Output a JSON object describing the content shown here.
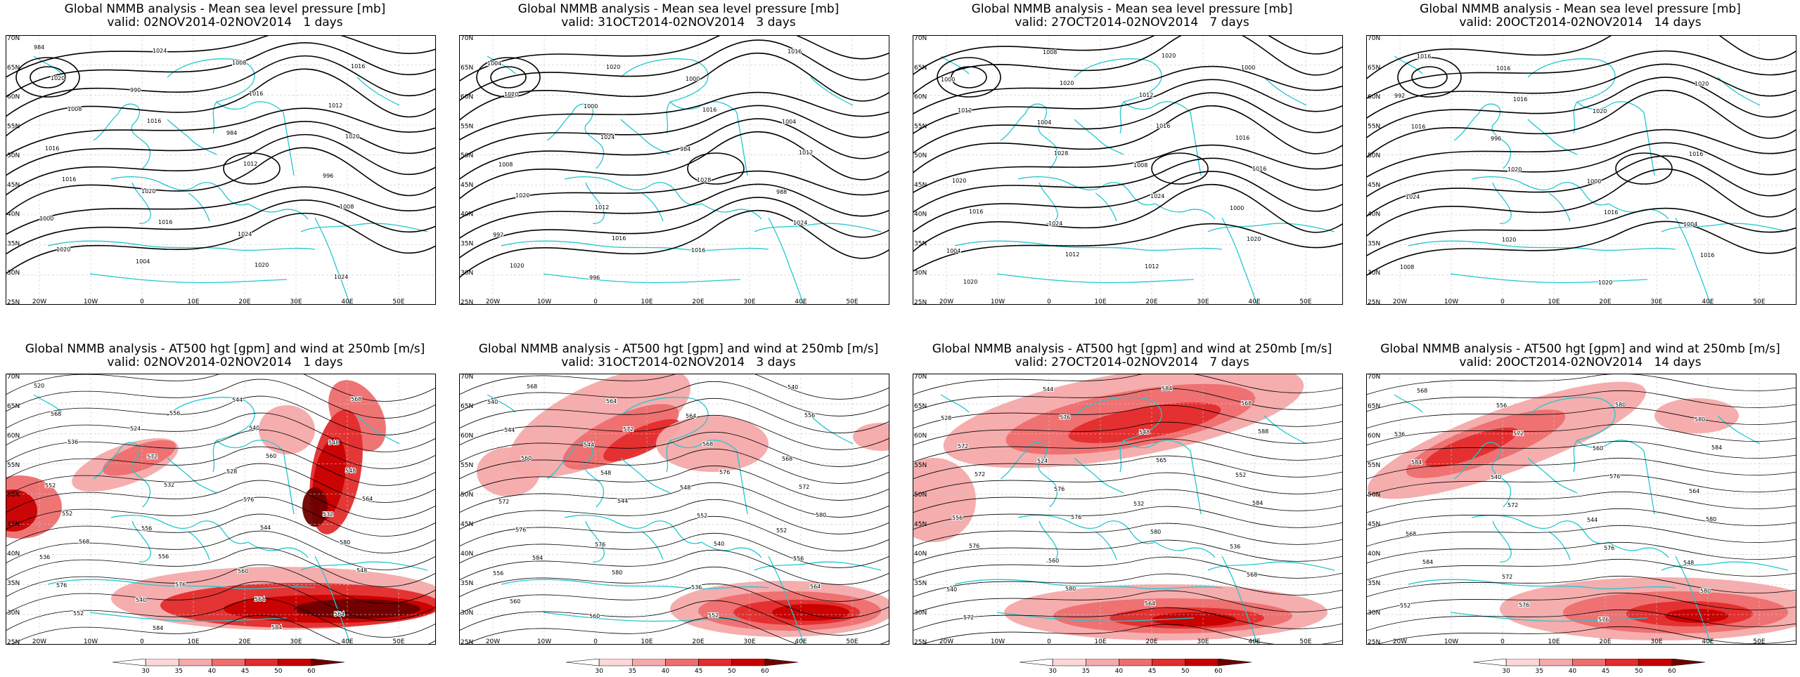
{
  "colors": {
    "coast": "#22c7cf",
    "contour": "#000000",
    "grid": "#c8c8c8",
    "wind_levels": [
      "#ffffff",
      "#fcd7d7",
      "#f6a9a9",
      "#ee6e6e",
      "#e32c2c",
      "#c80000",
      "#6e0000"
    ]
  },
  "lat_labels": [
    "70N",
    "65N",
    "60N",
    "55N",
    "50N",
    "45N",
    "40N",
    "35N",
    "30N",
    "25N"
  ],
  "lon_labels": [
    "20W",
    "10W",
    "0",
    "10E",
    "20E",
    "30E",
    "40E",
    "50E"
  ],
  "colorbar_labels": [
    "30",
    "35",
    "40",
    "45",
    "50",
    "60"
  ],
  "top_row": [
    {
      "title": "Global NMMB analysis - Mean sea level pressure [mb]",
      "valid": "valid: 02NOV2014-02NOV2014   1 days",
      "labels": [
        {
          "t": "984"
        },
        {
          "t": "990"
        },
        {
          "t": "984"
        },
        {
          "t": "996"
        },
        {
          "t": "1000"
        },
        {
          "t": "1004"
        },
        {
          "t": "1008"
        },
        {
          "t": "1012"
        },
        {
          "t": "1016"
        },
        {
          "t": "1020"
        },
        {
          "t": "1024"
        },
        {
          "t": "1024"
        },
        {
          "t": "1020"
        },
        {
          "t": "1016"
        },
        {
          "t": "1012"
        },
        {
          "t": "1008"
        },
        {
          "t": "1020"
        },
        {
          "t": "1024"
        },
        {
          "t": "1016"
        },
        {
          "t": "1020"
        },
        {
          "t": "1016"
        },
        {
          "t": "1016"
        },
        {
          "t": "1020"
        },
        {
          "t": "1016"
        },
        {
          "t": "1008"
        }
      ]
    },
    {
      "title": "Global NMMB analysis - Mean sea level pressure [mb]",
      "valid": "valid: 31OCT2014-02NOV2014   3 days",
      "labels": [
        {
          "t": "1004"
        },
        {
          "t": "1000"
        },
        {
          "t": "984"
        },
        {
          "t": "988"
        },
        {
          "t": "992"
        },
        {
          "t": "996"
        },
        {
          "t": "1000"
        },
        {
          "t": "1004"
        },
        {
          "t": "1008"
        },
        {
          "t": "1012"
        },
        {
          "t": "1016"
        },
        {
          "t": "1016"
        },
        {
          "t": "1020"
        },
        {
          "t": "1024"
        },
        {
          "t": "1028"
        },
        {
          "t": "1024"
        },
        {
          "t": "1020"
        },
        {
          "t": "1020"
        },
        {
          "t": "1016"
        },
        {
          "t": "1012"
        },
        {
          "t": "1020"
        },
        {
          "t": "1016"
        }
      ]
    },
    {
      "title": "Global NMMB analysis - Mean sea level pressure [mb]",
      "valid": "valid: 27OCT2014-02NOV2014   7 days",
      "labels": [
        {
          "t": "1000"
        },
        {
          "t": "1004"
        },
        {
          "t": "1008"
        },
        {
          "t": "1000"
        },
        {
          "t": "1004"
        },
        {
          "t": "1008"
        },
        {
          "t": "1012"
        },
        {
          "t": "1016"
        },
        {
          "t": "1020"
        },
        {
          "t": "1024"
        },
        {
          "t": "1012"
        },
        {
          "t": "1000"
        },
        {
          "t": "1012"
        },
        {
          "t": "1028"
        },
        {
          "t": "1024"
        },
        {
          "t": "1020"
        },
        {
          "t": "1020"
        },
        {
          "t": "1020"
        },
        {
          "t": "1016"
        },
        {
          "t": "1016"
        },
        {
          "t": "1016"
        },
        {
          "t": "1012"
        },
        {
          "t": "1020"
        }
      ]
    },
    {
      "title": "Global NMMB analysis - Mean sea level pressure [mb]",
      "valid": "valid: 20OCT2014-02NOV2014   14 days",
      "labels": [
        {
          "t": "992"
        },
        {
          "t": "996"
        },
        {
          "t": "1000"
        },
        {
          "t": "1004"
        },
        {
          "t": "1008"
        },
        {
          "t": "1016"
        },
        {
          "t": "1020"
        },
        {
          "t": "1016"
        },
        {
          "t": "1024"
        },
        {
          "t": "1020"
        },
        {
          "t": "1020"
        },
        {
          "t": "1020"
        },
        {
          "t": "1016"
        },
        {
          "t": "1020"
        },
        {
          "t": "1016"
        },
        {
          "t": "1016"
        },
        {
          "t": "1016"
        },
        {
          "t": "1016"
        }
      ]
    }
  ],
  "bottom_row": [
    {
      "title": "Global NMMB analysis - AT500 hgt [gpm] and wind at 250mb [m/s]",
      "valid": "valid: 02NOV2014-02NOV2014   1 days",
      "labels": [
        {
          "t": "520"
        },
        {
          "t": "524"
        },
        {
          "t": "528"
        },
        {
          "t": "532"
        },
        {
          "t": "536"
        },
        {
          "t": "540"
        },
        {
          "t": "544"
        },
        {
          "t": "548"
        },
        {
          "t": "552"
        },
        {
          "t": "556"
        },
        {
          "t": "560"
        },
        {
          "t": "564"
        },
        {
          "t": "568"
        },
        {
          "t": "572"
        },
        {
          "t": "576"
        },
        {
          "t": "580"
        },
        {
          "t": "576"
        },
        {
          "t": "584"
        },
        {
          "t": "540"
        },
        {
          "t": "548"
        },
        {
          "t": "552"
        },
        {
          "t": "556"
        },
        {
          "t": "564"
        },
        {
          "t": "568"
        },
        {
          "t": "536"
        },
        {
          "t": "532"
        },
        {
          "t": "544"
        },
        {
          "t": "548"
        },
        {
          "t": "552"
        },
        {
          "t": "556"
        },
        {
          "t": "560"
        },
        {
          "t": "564"
        },
        {
          "t": "568"
        },
        {
          "t": "576"
        },
        {
          "t": "584"
        }
      ]
    },
    {
      "title": "Global NMMB analysis - AT500 hgt [gpm] and wind at 250mb [m/s]",
      "valid": "valid: 31OCT2014-02NOV2014   3 days",
      "labels": [
        {
          "t": "540"
        },
        {
          "t": "544"
        },
        {
          "t": "548"
        },
        {
          "t": "552"
        },
        {
          "t": "556"
        },
        {
          "t": "560"
        },
        {
          "t": "564"
        },
        {
          "t": "568"
        },
        {
          "t": "572"
        },
        {
          "t": "576"
        },
        {
          "t": "536"
        },
        {
          "t": "540"
        },
        {
          "t": "544"
        },
        {
          "t": "548"
        },
        {
          "t": "552"
        },
        {
          "t": "556"
        },
        {
          "t": "560"
        },
        {
          "t": "564"
        },
        {
          "t": "568"
        },
        {
          "t": "572"
        },
        {
          "t": "576"
        },
        {
          "t": "580"
        },
        {
          "t": "552"
        },
        {
          "t": "556"
        },
        {
          "t": "560"
        },
        {
          "t": "544"
        },
        {
          "t": "540"
        },
        {
          "t": "564"
        },
        {
          "t": "568"
        },
        {
          "t": "572"
        },
        {
          "t": "576"
        },
        {
          "t": "580"
        },
        {
          "t": "584"
        }
      ]
    },
    {
      "title": "Global NMMB analysis - AT500 hgt [gpm] and wind at 250mb [m/s]",
      "valid": "valid: 27OCT2014-02NOV2014   7 days",
      "labels": [
        {
          "t": "528"
        },
        {
          "t": "524"
        },
        {
          "t": "532"
        },
        {
          "t": "536"
        },
        {
          "t": "540"
        },
        {
          "t": "544"
        },
        {
          "t": "548"
        },
        {
          "t": "552"
        },
        {
          "t": "556"
        },
        {
          "t": "560"
        },
        {
          "t": "564"
        },
        {
          "t": "568"
        },
        {
          "t": "572"
        },
        {
          "t": "576"
        },
        {
          "t": "580"
        },
        {
          "t": "568"
        },
        {
          "t": "572"
        },
        {
          "t": "576"
        },
        {
          "t": "565"
        },
        {
          "t": "584"
        },
        {
          "t": "576"
        },
        {
          "t": "580"
        },
        {
          "t": "584"
        },
        {
          "t": "588"
        },
        {
          "t": "572"
        },
        {
          "t": "576"
        }
      ]
    },
    {
      "title": "Global NMMB analysis - AT500 hgt [gpm] and wind at 250mb [m/s]",
      "valid": "valid: 20OCT2014-02NOV2014   14 days",
      "labels": [
        {
          "t": "536"
        },
        {
          "t": "540"
        },
        {
          "t": "544"
        },
        {
          "t": "548"
        },
        {
          "t": "552"
        },
        {
          "t": "556"
        },
        {
          "t": "560"
        },
        {
          "t": "564"
        },
        {
          "t": "568"
        },
        {
          "t": "572"
        },
        {
          "t": "576"
        },
        {
          "t": "580"
        },
        {
          "t": "584"
        },
        {
          "t": "572"
        },
        {
          "t": "576"
        },
        {
          "t": "580"
        },
        {
          "t": "568"
        },
        {
          "t": "572"
        },
        {
          "t": "576"
        },
        {
          "t": "580"
        },
        {
          "t": "584"
        },
        {
          "t": "576"
        },
        {
          "t": "580"
        },
        {
          "t": "584"
        }
      ]
    }
  ]
}
